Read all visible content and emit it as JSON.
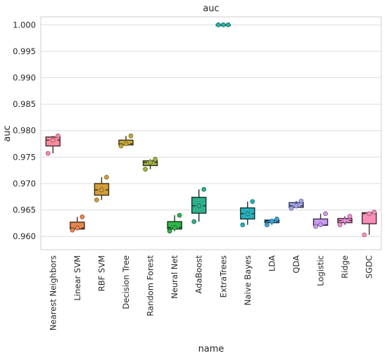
{
  "chart_data": {
    "type": "box",
    "title": "auc",
    "xlabel": "name",
    "ylabel": "auc",
    "ylim": [
      0.9575,
      1.0015
    ],
    "yticks": [
      0.96,
      0.965,
      0.97,
      0.975,
      0.98,
      0.985,
      0.99,
      0.995,
      1.0
    ],
    "ytick_labels": [
      "0.960",
      "0.965",
      "0.970",
      "0.975",
      "0.980",
      "0.985",
      "0.990",
      "0.995",
      "1.000"
    ],
    "grid": "horizontal",
    "categories": [
      "Nearest Neighbors",
      "Linear SVM",
      "RBF SVM",
      "Decision Tree",
      "Random Forest",
      "Neural Net",
      "AdaBoost",
      "ExtraTrees",
      "Naive Bayes",
      "LDA",
      "QDA",
      "Logistic",
      "Ridge",
      "SGDC"
    ],
    "boxes": [
      {
        "name": "Nearest Neighbors",
        "whislo": 0.9757,
        "q1": 0.9771,
        "med": 0.9782,
        "q3": 0.9788,
        "whishi": 0.979,
        "points": [
          0.9757,
          0.9782,
          0.979
        ],
        "color": "#f98da0"
      },
      {
        "name": "Linear SVM",
        "whislo": 0.9612,
        "q1": 0.9614,
        "med": 0.9616,
        "q3": 0.9627,
        "whishi": 0.9637,
        "points": [
          0.9612,
          0.9616,
          0.9637
        ],
        "color": "#e8874f"
      },
      {
        "name": "RBF SVM",
        "whislo": 0.9669,
        "q1": 0.9678,
        "med": 0.9688,
        "q3": 0.97,
        "whishi": 0.9712,
        "points": [
          0.9669,
          0.9688,
          0.9712
        ],
        "color": "#d29e3c"
      },
      {
        "name": "Decision Tree",
        "whislo": 0.9771,
        "q1": 0.9773,
        "med": 0.9775,
        "q3": 0.9782,
        "whishi": 0.979,
        "points": [
          0.9771,
          0.9775,
          0.979
        ],
        "color": "#c4a83a"
      },
      {
        "name": "Random Forest",
        "whislo": 0.9727,
        "q1": 0.9734,
        "med": 0.974,
        "q3": 0.9743,
        "whishi": 0.9746,
        "points": [
          0.9727,
          0.974,
          0.9746
        ],
        "color": "#a4b244"
      },
      {
        "name": "Neural Net",
        "whislo": 0.961,
        "q1": 0.9614,
        "med": 0.9617,
        "q3": 0.9628,
        "whishi": 0.964,
        "points": [
          0.961,
          0.9617,
          0.964
        ],
        "color": "#2fb64a"
      },
      {
        "name": "AdaBoost",
        "whislo": 0.9628,
        "q1": 0.9644,
        "med": 0.9658,
        "q3": 0.9674,
        "whishi": 0.9689,
        "points": [
          0.9628,
          0.9658,
          0.9689
        ],
        "color": "#2fb08d"
      },
      {
        "name": "ExtraTrees",
        "whislo": 1.0,
        "q1": 1.0,
        "med": 1.0,
        "q3": 1.0,
        "whishi": 1.0,
        "points": [
          1.0,
          1.0,
          1.0
        ],
        "color": "#2ab3a3"
      },
      {
        "name": "Naive Bayes",
        "whislo": 0.9622,
        "q1": 0.9633,
        "med": 0.9643,
        "q3": 0.9654,
        "whishi": 0.9666,
        "points": [
          0.9622,
          0.9643,
          0.9666
        ],
        "color": "#2aafba"
      },
      {
        "name": "LDA",
        "whislo": 0.9622,
        "q1": 0.9626,
        "med": 0.9629,
        "q3": 0.9631,
        "whishi": 0.9633,
        "points": [
          0.9622,
          0.9629,
          0.9633
        ],
        "color": "#3aa5dc"
      },
      {
        "name": "QDA",
        "whislo": 0.9653,
        "q1": 0.9655,
        "med": 0.9658,
        "q3": 0.9664,
        "whishi": 0.9667,
        "points": [
          0.9653,
          0.9658,
          0.9667
        ],
        "color": "#a3a7ee"
      },
      {
        "name": "Logistic",
        "whislo": 0.9619,
        "q1": 0.9621,
        "med": 0.9622,
        "q3": 0.9633,
        "whishi": 0.9643,
        "points": [
          0.9619,
          0.9622,
          0.9643
        ],
        "color": "#c89af0"
      },
      {
        "name": "Ridge",
        "whislo": 0.9622,
        "q1": 0.9626,
        "med": 0.963,
        "q3": 0.9634,
        "whishi": 0.9638,
        "points": [
          0.9622,
          0.963,
          0.9638
        ],
        "color": "#ee8fd6"
      },
      {
        "name": "SGDC",
        "whislo": 0.9603,
        "q1": 0.9624,
        "med": 0.9643,
        "q3": 0.9645,
        "whishi": 0.9646,
        "points": [
          0.9603,
          0.9643,
          0.9646
        ],
        "color": "#f78fb9"
      }
    ]
  }
}
